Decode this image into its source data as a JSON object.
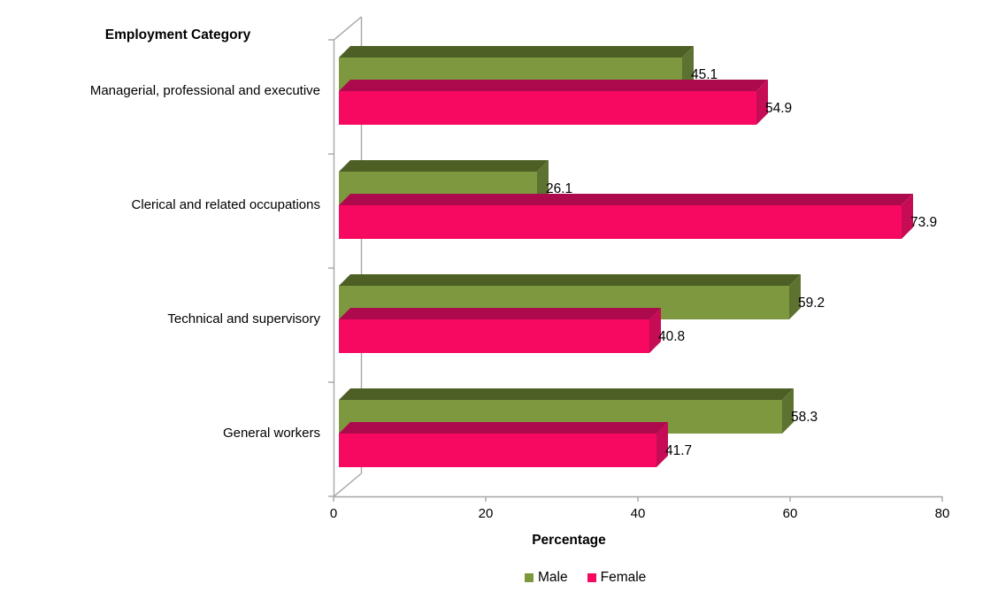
{
  "page": {
    "background_color": "#ffffff",
    "text_color": "#000000"
  },
  "chart_data": {
    "type": "bar",
    "orientation": "horizontal",
    "effect": "3d",
    "category_axis_title": "Employment Category",
    "value_axis_title": "Percentage",
    "categories": [
      "Managerial, professional and executive",
      "Clerical and related occupations",
      "Technical and supervisory",
      "General workers"
    ],
    "series": [
      {
        "name": "Male",
        "values": [
          45.1,
          26.1,
          59.2,
          58.3
        ],
        "color_front": "#7D983E",
        "color_top": "#4D5F24",
        "color_side": "#5D7230"
      },
      {
        "name": "Female",
        "values": [
          54.9,
          73.9,
          40.8,
          41.7
        ],
        "color_front": "#F70962",
        "color_top": "#AD0A4E",
        "color_side": "#C50C54"
      }
    ],
    "xlim": [
      0,
      80
    ],
    "xticks": [
      0,
      20,
      40,
      60,
      80
    ],
    "data_labels_decimals": 1,
    "grid": false,
    "legend_position": "bottom"
  },
  "axis_style": {
    "line_color": "#A6A6A6"
  }
}
